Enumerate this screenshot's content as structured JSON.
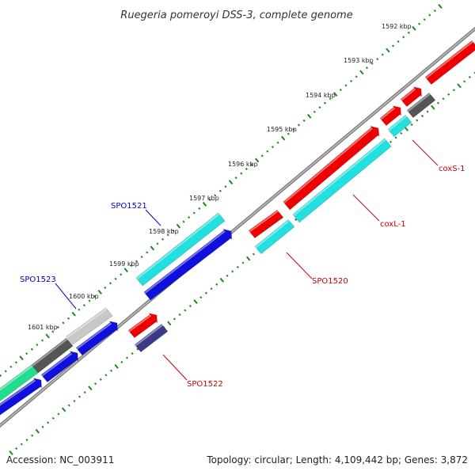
{
  "title": "Ruegeria pomeroyi DSS-3, complete genome",
  "footer": {
    "accession": "Accession: NC_003911",
    "summary": "Topology: circular; Length: 4,109,442 bp; Genes: 3,872"
  },
  "ruler": {
    "labels": [
      "1592 kbp",
      "1593 kbp",
      "1594 kbp",
      "1595 kbp",
      "1596 kbp",
      "1597 kbp",
      "1598 kbp",
      "1599 kbp",
      "1600 kbp",
      "1601 kbp"
    ],
    "tick_color": "#1a8a1a"
  },
  "colors": {
    "backbone": "#8a8a8a",
    "red": "#ee0000",
    "cyan": "#22e0e0",
    "blue": "#1010dd",
    "gray_dark": "#555555",
    "gray_light": "#c8c8c8",
    "green": "#20dd90",
    "navy": "#3a3a88",
    "label_blue": "#0000cc",
    "label_red": "#cc0000"
  },
  "gene_labels": [
    {
      "name": "SPO1521",
      "color": "blue"
    },
    {
      "name": "SPO1523",
      "color": "blue"
    },
    {
      "name": "coxS-1",
      "color": "red"
    },
    {
      "name": "coxL-1",
      "color": "red"
    },
    {
      "name": "SPO1520",
      "color": "red"
    },
    {
      "name": "SPO1522",
      "color": "red"
    }
  ]
}
